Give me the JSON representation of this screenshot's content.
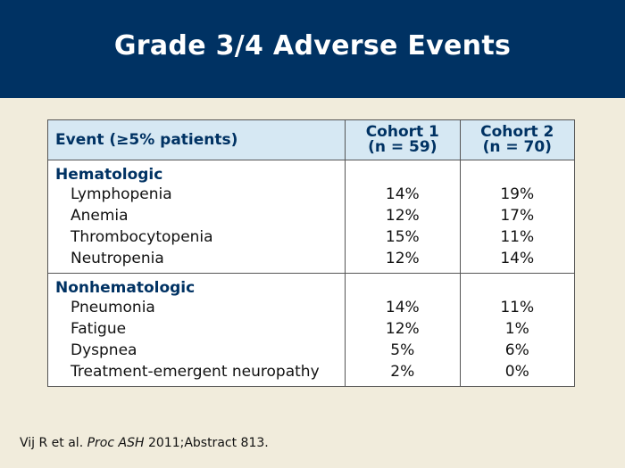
{
  "slide_title": "Grade 3/4 Adverse Events",
  "table": {
    "header": {
      "event": "Event (≥5% patients)",
      "cohort1_line1": "Cohort 1",
      "cohort1_line2": "(n = 59)",
      "cohort2_line1": "Cohort 2",
      "cohort2_line2": "(n = 70)"
    },
    "groups": [
      {
        "category": "Hematologic",
        "rows": [
          {
            "event": "Lymphopenia",
            "cohort1": "14%",
            "cohort2": "19%"
          },
          {
            "event": "Anemia",
            "cohort1": "12%",
            "cohort2": "17%"
          },
          {
            "event": "Thrombocytopenia",
            "cohort1": "15%",
            "cohort2": "11%"
          },
          {
            "event": "Neutropenia",
            "cohort1": "12%",
            "cohort2": "14%"
          }
        ]
      },
      {
        "category": "Nonhematologic",
        "rows": [
          {
            "event": "Pneumonia",
            "cohort1": "14%",
            "cohort2": "11%"
          },
          {
            "event": "Fatigue",
            "cohort1": "12%",
            "cohort2": "1%"
          },
          {
            "event": "Dyspnea",
            "cohort1": "5%",
            "cohort2": "6%"
          },
          {
            "event": "Treatment-emergent neuropathy",
            "cohort1": "2%",
            "cohort2": "0%"
          }
        ]
      }
    ]
  },
  "citation": {
    "authors": "Vij R et al.",
    "journal": "Proc ASH",
    "detail": "2011;Abstract 813."
  },
  "colors": {
    "header_bg": "#003263",
    "slide_bg": "#f1ecdc",
    "table_header_bg": "#d6e8f3"
  }
}
